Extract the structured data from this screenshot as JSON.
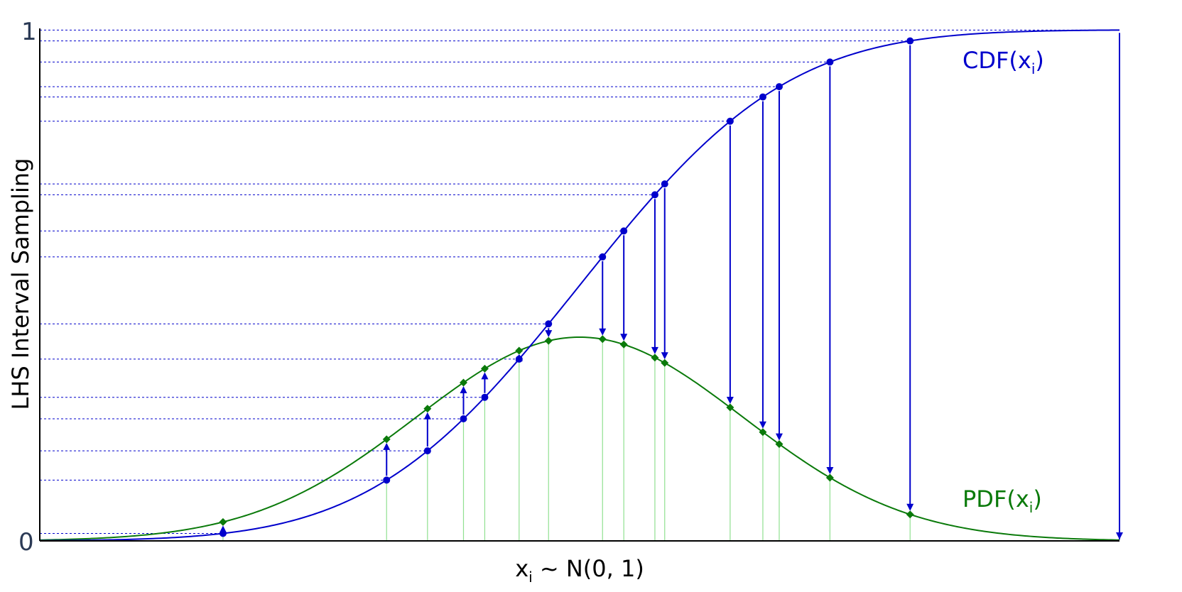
{
  "chart_data": {
    "type": "line",
    "xlabel_main": "x",
    "xlabel_sub": "i",
    "xlabel_rest": " ~ N(0, 1)",
    "ylabel": "LHS Interval Sampling",
    "ylim": [
      0,
      1
    ],
    "xlim": [
      -3.3,
      3.3
    ],
    "yticks": [
      "0",
      "1"
    ],
    "grid": false,
    "legend": "none",
    "colors": {
      "cdf": "#0000cc",
      "pdf": "#0a7a0a",
      "pdf_stem": "#90e090",
      "axis": "#000000"
    },
    "series": [
      {
        "key": "cdf",
        "name_main": "CDF(x",
        "name_sub": "i",
        "name_end": ")"
      },
      {
        "key": "pdf",
        "name_main": "PDF(x",
        "name_sub": "i",
        "name_end": ")"
      }
    ],
    "samples_x": [
      -2.18,
      -1.18,
      -0.93,
      -0.71,
      -0.58,
      -0.37,
      -0.19,
      0.14,
      0.27,
      0.46,
      0.52,
      0.92,
      1.12,
      1.22,
      1.53,
      2.02,
      3.3
    ]
  }
}
